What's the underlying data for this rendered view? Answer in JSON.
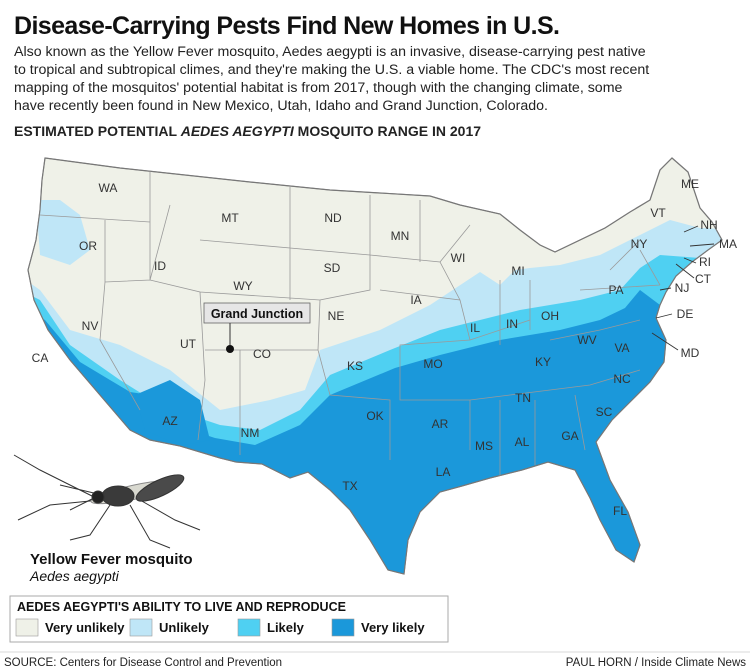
{
  "title": "Disease-Carrying Pests Find New Homes in U.S.",
  "intro": [
    "Also known as the Yellow Fever mosquito, Aedes aegypti is an invasive, disease-carrying pest native",
    "to tropical and subtropical climes, and they're making the U.S. a viable home. The CDC's most recent",
    "mapping of the mosquitos' potential habitat is from 2017, though with the changing climate, some",
    "have recently been found in New Mexico, Utah, Idaho and Grand Junction, Colorado."
  ],
  "map_title": {
    "prefix": "ESTIMATED POTENTIAL ",
    "emphasis": "AEDES AEGYPTI",
    "suffix": " MOSQUITO RANGE IN 2017"
  },
  "states": [
    "WA",
    "OR",
    "CA",
    "NV",
    "ID",
    "MT",
    "WY",
    "UT",
    "CO",
    "AZ",
    "NM",
    "ND",
    "SD",
    "NE",
    "KS",
    "OK",
    "TX",
    "MN",
    "IA",
    "MO",
    "AR",
    "LA",
    "WI",
    "IL",
    "MI",
    "IN",
    "OH",
    "KY",
    "TN",
    "MS",
    "AL",
    "GA",
    "FL",
    "SC",
    "NC",
    "VA",
    "WV",
    "PA",
    "NY",
    "VT",
    "ME",
    "NH",
    "MA",
    "RI",
    "CT",
    "NJ",
    "DE",
    "MD"
  ],
  "marker": "Grand Junction",
  "mosquito": {
    "name": "Yellow Fever mosquito",
    "species": "Aedes aegypti"
  },
  "legend": {
    "title": "AEDES AEGYPTI'S ABILITY TO LIVE AND REPRODUCE",
    "items": [
      {
        "label": "Very unlikely",
        "color": "#eff1e8"
      },
      {
        "label": "Unlikely",
        "color": "#bfe6f7"
      },
      {
        "label": "Likely",
        "color": "#4fd0f2"
      },
      {
        "label": "Very likely",
        "color": "#1b98da"
      }
    ]
  },
  "source": "SOURCE: Centers for Disease Control and Prevention",
  "credit": "PAUL HORN / Inside Climate News"
}
